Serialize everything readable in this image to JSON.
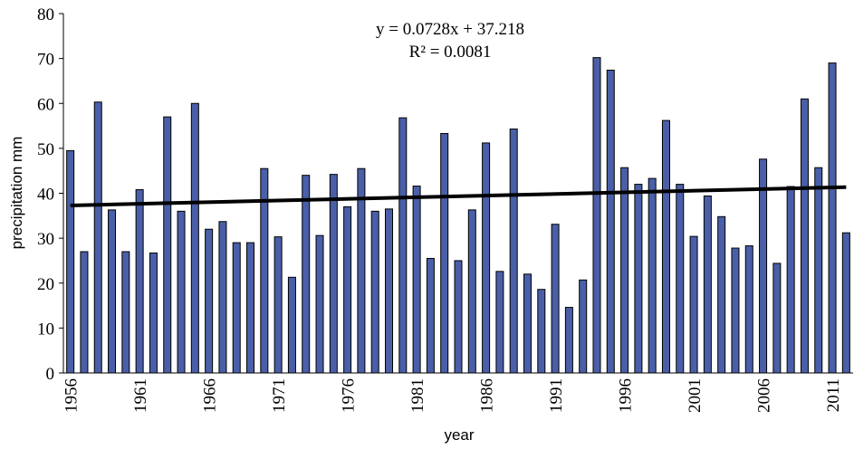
{
  "chart_data": {
    "type": "bar",
    "x_label": "year",
    "y_label": "precipitation mm",
    "categories": [
      "1956",
      null,
      null,
      null,
      null,
      "1961",
      null,
      null,
      null,
      null,
      "1966",
      null,
      null,
      null,
      null,
      "1971",
      null,
      null,
      null,
      null,
      "1976",
      null,
      null,
      null,
      null,
      "1981",
      null,
      null,
      null,
      null,
      "1986",
      null,
      null,
      null,
      null,
      "1991",
      null,
      null,
      null,
      null,
      "1996",
      null,
      null,
      null,
      null,
      "2001",
      null,
      null,
      null,
      null,
      "2006",
      null,
      null,
      null,
      null,
      "2011",
      null
    ],
    "values": [
      49.5,
      27,
      60.3,
      36.3,
      27,
      40.8,
      26.7,
      57,
      36,
      60,
      32,
      33.7,
      29,
      29,
      45.5,
      30.3,
      21.3,
      44,
      30.6,
      44.2,
      37,
      45.5,
      36,
      36.5,
      56.8,
      41.6,
      25.5,
      53.3,
      25,
      36.3,
      51.2,
      22.6,
      54.3,
      22,
      18.6,
      33.1,
      14.6,
      20.7,
      70.2,
      67.4,
      45.7,
      42,
      43.3,
      56.2,
      42,
      30.4,
      39.4,
      34.8,
      27.8,
      28.3,
      47.6,
      24.4,
      41.5,
      61,
      45.7,
      69,
      31.2
    ],
    "color": "#4a5fa8",
    "ylim": [
      0,
      80
    ],
    "yticks": [
      0,
      10,
      20,
      30,
      40,
      50,
      60,
      70,
      80
    ],
    "grid": false,
    "trendline": {
      "slope": 0.0728,
      "intercept": 37.218,
      "equation": "y = 0.0728x + 37.218",
      "r_squared": "R² = 0.0081",
      "color": "#000000"
    }
  }
}
